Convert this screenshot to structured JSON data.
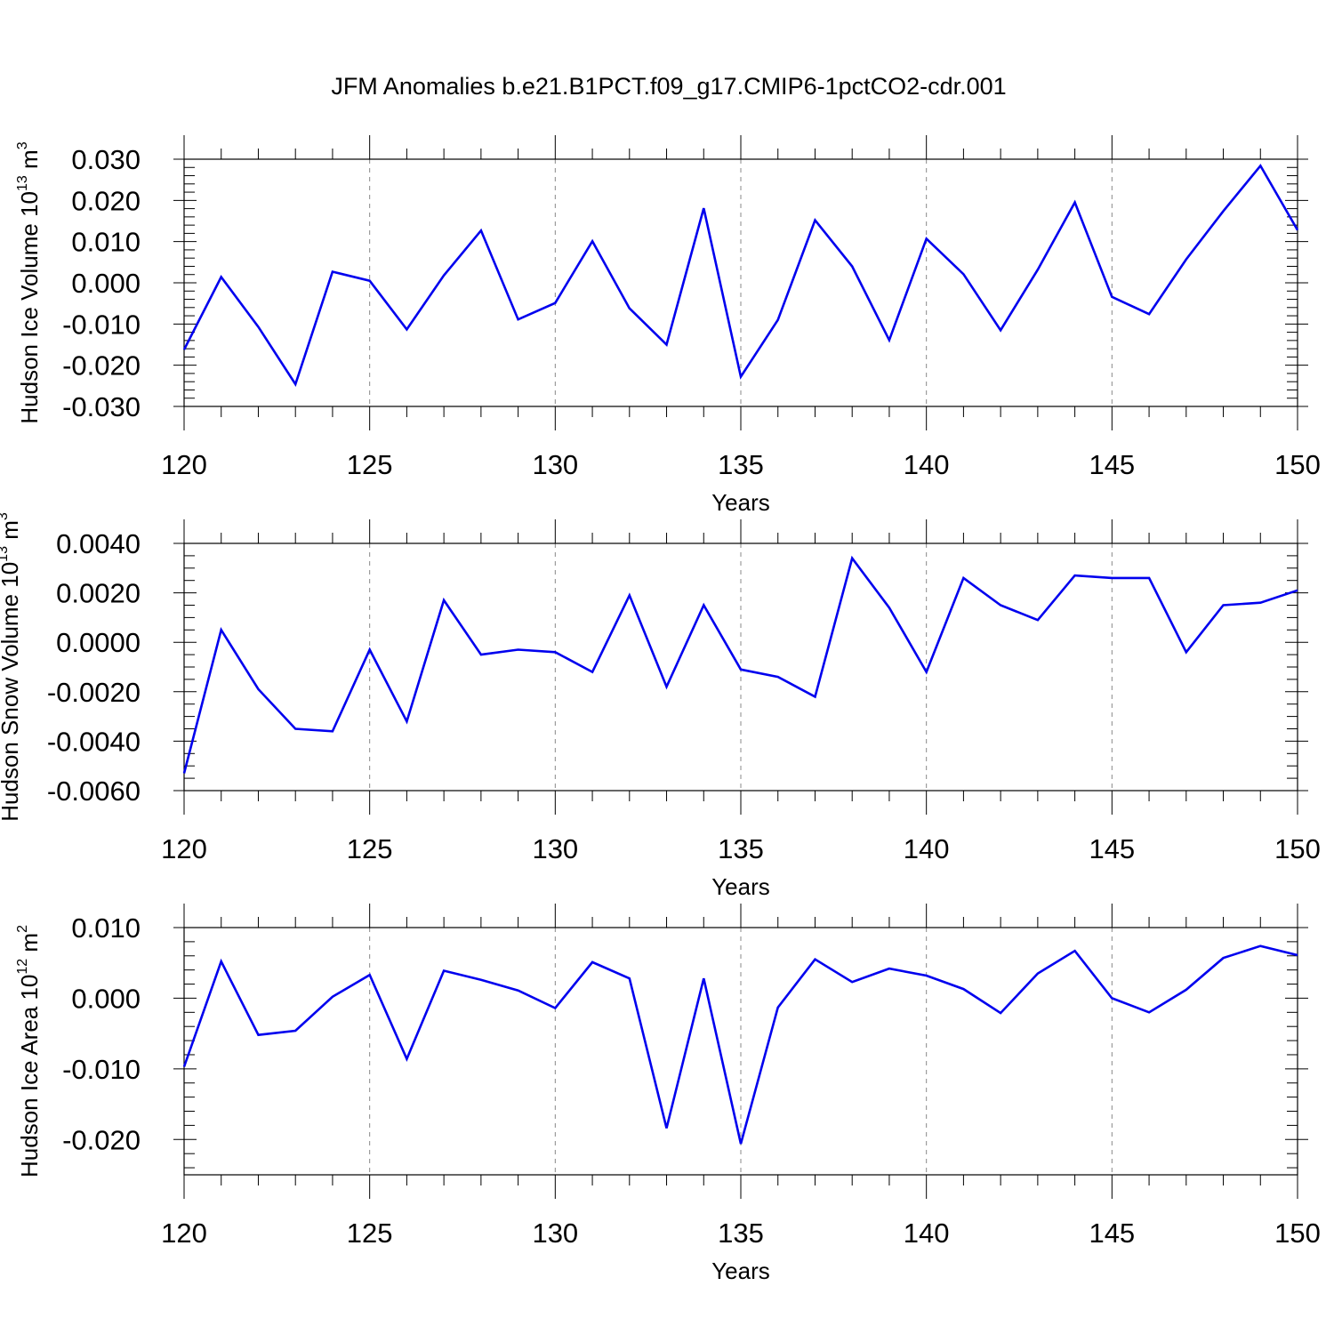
{
  "title": "JFM Anomalies b.e21.B1PCT.f09_g17.CMIP6-1pctCO2-cdr.001",
  "chart_data": [
    {
      "type": "line",
      "ylabel": "Hudson Ice Volume 10",
      "ylabel_exp": "13",
      "ylabel_unit": "m",
      "ylabel_unit_exp": "3",
      "xlabel": "Years",
      "xlim": [
        120,
        150
      ],
      "ylim": [
        -0.03,
        0.03
      ],
      "xticks": [
        120,
        125,
        130,
        135,
        140,
        145,
        150
      ],
      "xtick_labels": [
        "120",
        "125",
        "130",
        "135",
        "140",
        "145",
        "150"
      ],
      "yticks": [
        -0.03,
        -0.02,
        -0.01,
        0.0,
        0.01,
        0.02,
        0.03
      ],
      "ytick_labels": [
        "-0.030",
        "-0.020",
        "-0.010",
        "0.000",
        "0.010",
        "0.020",
        "0.030"
      ],
      "x": [
        120,
        121,
        122,
        123,
        124,
        125,
        126,
        127,
        128,
        129,
        130,
        131,
        132,
        133,
        134,
        135,
        136,
        137,
        138,
        139,
        140,
        141,
        142,
        143,
        144,
        145,
        146,
        147,
        148,
        149,
        150
      ],
      "values": [
        -0.0162,
        0.0014,
        -0.0107,
        -0.0246,
        0.0027,
        0.0005,
        -0.0113,
        0.0018,
        0.0127,
        -0.0089,
        -0.0049,
        0.0101,
        -0.0062,
        -0.015,
        0.0181,
        -0.0228,
        -0.009,
        0.0152,
        0.004,
        -0.0139,
        0.0107,
        0.0021,
        -0.0115,
        0.0032,
        0.0195,
        -0.0034,
        -0.0076,
        0.0057,
        0.0174,
        0.0284,
        0.0128
      ],
      "line_color": "#0000ee"
    },
    {
      "type": "line",
      "ylabel": "Hudson Snow Volume 10",
      "ylabel_exp": "13",
      "ylabel_unit": "m",
      "ylabel_unit_exp": "3",
      "xlabel": "Years",
      "xlim": [
        120,
        150
      ],
      "ylim": [
        -0.006,
        0.004
      ],
      "xticks": [
        120,
        125,
        130,
        135,
        140,
        145,
        150
      ],
      "xtick_labels": [
        "120",
        "125",
        "130",
        "135",
        "140",
        "145",
        "150"
      ],
      "yticks": [
        -0.006,
        -0.004,
        -0.002,
        0.0,
        0.002,
        0.004
      ],
      "ytick_labels": [
        "-0.0060",
        "-0.0040",
        "-0.0020",
        "0.0000",
        "0.0020",
        "0.0040"
      ],
      "x": [
        120,
        121,
        122,
        123,
        124,
        125,
        126,
        127,
        128,
        129,
        130,
        131,
        132,
        133,
        134,
        135,
        136,
        137,
        138,
        139,
        140,
        141,
        142,
        143,
        144,
        145,
        146,
        147,
        148,
        149,
        150
      ],
      "values": [
        -0.0053,
        0.0005,
        -0.0019,
        -0.0035,
        -0.0036,
        -0.0003,
        -0.0032,
        0.0017,
        -0.0005,
        -0.0003,
        -0.0004,
        -0.0012,
        0.0019,
        -0.0018,
        0.0015,
        -0.0011,
        -0.0014,
        -0.0022,
        0.0034,
        0.0014,
        -0.0012,
        0.0026,
        0.0015,
        0.0009,
        0.0027,
        0.0026,
        0.0026,
        -0.0004,
        0.0015,
        0.0016,
        0.0021
      ],
      "line_color": "#0000ee"
    },
    {
      "type": "line",
      "ylabel": "Hudson Ice Area 10",
      "ylabel_exp": "12",
      "ylabel_unit": "m",
      "ylabel_unit_exp": "2",
      "xlabel": "Years",
      "xlim": [
        120,
        150
      ],
      "ylim": [
        -0.025,
        0.01
      ],
      "xticks": [
        120,
        125,
        130,
        135,
        140,
        145,
        150
      ],
      "xtick_labels": [
        "120",
        "125",
        "130",
        "135",
        "140",
        "145",
        "150"
      ],
      "yticks": [
        -0.02,
        -0.01,
        0.0,
        0.01
      ],
      "ytick_labels": [
        "-0.020",
        "-0.010",
        "0.000",
        "0.010"
      ],
      "x": [
        120,
        121,
        122,
        123,
        124,
        125,
        126,
        127,
        128,
        129,
        130,
        131,
        132,
        133,
        134,
        135,
        136,
        137,
        138,
        139,
        140,
        141,
        142,
        143,
        144,
        145,
        146,
        147,
        148,
        149,
        150
      ],
      "values": [
        -0.0097,
        0.0052,
        -0.0052,
        -0.0046,
        0.0002,
        0.0033,
        -0.0086,
        0.0039,
        0.0026,
        0.0011,
        -0.0014,
        0.0051,
        0.0028,
        -0.0184,
        0.0028,
        -0.0206,
        -0.0013,
        0.0055,
        0.0023,
        0.0042,
        0.0032,
        0.0013,
        -0.0021,
        0.0035,
        0.0067,
        0.0,
        -0.002,
        0.0012,
        0.0057,
        0.0074,
        0.0061
      ],
      "line_color": "#0000ee"
    }
  ]
}
